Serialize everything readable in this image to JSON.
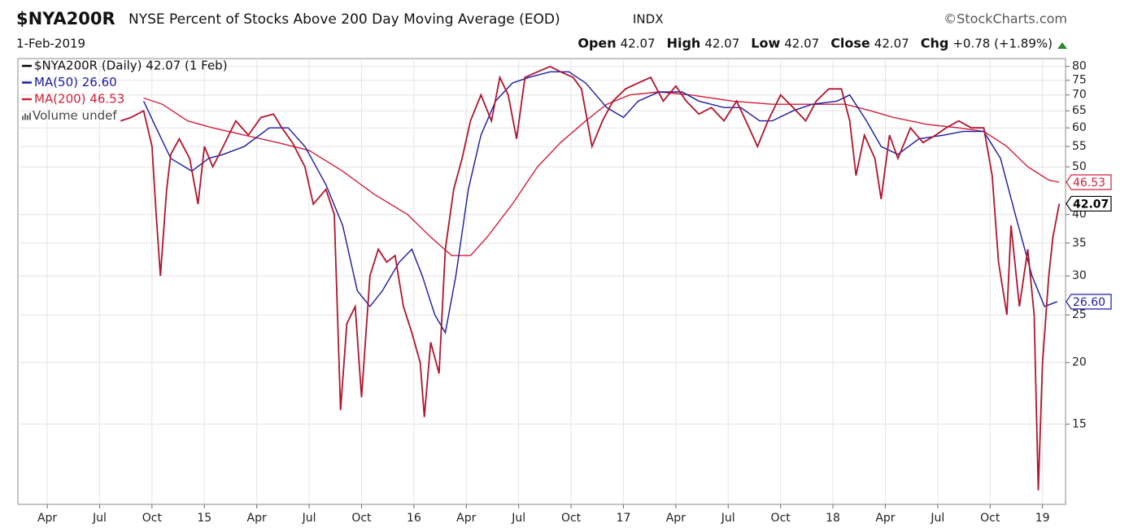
{
  "chart_data": {
    "type": "line",
    "symbol": "$NYA200R",
    "title": "NYSE Percent of Stocks Above 200 Day Moving Average (EOD)",
    "exchange": "INDX",
    "source": "©StockCharts.com",
    "date": "1-Feb-2019",
    "quote": [
      {
        "label": "Open",
        "value": "42.07"
      },
      {
        "label": "High",
        "value": "42.07"
      },
      {
        "label": "Low",
        "value": "42.07"
      },
      {
        "label": "Close",
        "value": "42.07"
      },
      {
        "label": "Chg",
        "value": "+0.78 (+1.89%)"
      }
    ],
    "volume_note": "Volume undef",
    "log_scale": true,
    "grid": true,
    "legend": "top-left",
    "xlim": [
      2014.11,
      2019.11
    ],
    "ylim": [
      10.3,
      83
    ],
    "yticks": [
      15,
      20,
      25,
      30,
      35,
      40,
      50,
      55,
      60,
      65,
      70,
      75,
      80
    ],
    "xticks": [
      {
        "value": 2014.25,
        "label": "Apr"
      },
      {
        "value": 2014.5,
        "label": "Jul"
      },
      {
        "value": 2014.75,
        "label": "Oct"
      },
      {
        "value": 2015,
        "label": "15"
      },
      {
        "value": 2015.25,
        "label": "Apr"
      },
      {
        "value": 2015.5,
        "label": "Jul"
      },
      {
        "value": 2015.75,
        "label": "Oct"
      },
      {
        "value": 2016,
        "label": "16"
      },
      {
        "value": 2016.25,
        "label": "Apr"
      },
      {
        "value": 2016.5,
        "label": "Jul"
      },
      {
        "value": 2016.75,
        "label": "Oct"
      },
      {
        "value": 2017,
        "label": "17"
      },
      {
        "value": 2017.25,
        "label": "Apr"
      },
      {
        "value": 2017.5,
        "label": "Jul"
      },
      {
        "value": 2017.75,
        "label": "Oct"
      },
      {
        "value": 2018,
        "label": "18"
      },
      {
        "value": 2018.25,
        "label": "Apr"
      },
      {
        "value": 2018.5,
        "label": "Jul"
      },
      {
        "value": 2018.75,
        "label": "Oct"
      },
      {
        "value": 2019,
        "label": "19"
      }
    ],
    "series": [
      {
        "name": "$NYA200R (Daily) 42.07 (1 Feb)",
        "color": "#b0142c",
        "legend_color": "#000000",
        "last_label": "42.07",
        "badge_color": "#000000",
        "x": [
          2014.6,
          2014.65,
          2014.71,
          2014.75,
          2014.77,
          2014.79,
          2014.82,
          2014.84,
          2014.88,
          2014.93,
          2014.97,
          2015.0,
          2015.04,
          2015.09,
          2015.15,
          2015.21,
          2015.27,
          2015.33,
          2015.37,
          2015.42,
          2015.48,
          2015.52,
          2015.58,
          2015.62,
          2015.65,
          2015.68,
          2015.72,
          2015.75,
          2015.79,
          2015.83,
          2015.87,
          2015.91,
          2015.95,
          2015.99,
          2016.03,
          2016.05,
          2016.08,
          2016.12,
          2016.15,
          2016.19,
          2016.23,
          2016.27,
          2016.32,
          2016.37,
          2016.41,
          2016.45,
          2016.49,
          2016.53,
          2016.59,
          2016.65,
          2016.7,
          2016.76,
          2016.8,
          2016.85,
          2016.9,
          2016.95,
          2017.01,
          2017.07,
          2017.13,
          2017.19,
          2017.25,
          2017.3,
          2017.36,
          2017.42,
          2017.48,
          2017.54,
          2017.6,
          2017.64,
          2017.69,
          2017.75,
          2017.81,
          2017.87,
          2017.92,
          2017.98,
          2018.04,
          2018.08,
          2018.11,
          2018.15,
          2018.2,
          2018.23,
          2018.27,
          2018.31,
          2018.37,
          2018.43,
          2018.49,
          2018.54,
          2018.6,
          2018.66,
          2018.72,
          2018.76,
          2018.79,
          2018.83,
          2018.85,
          2018.89,
          2018.93,
          2018.96,
          2018.98,
          2019.0,
          2019.03,
          2019.05,
          2019.08
        ],
        "values": [
          62,
          63,
          65,
          55,
          40,
          30,
          45,
          53,
          57,
          52,
          42,
          55,
          50,
          55,
          62,
          58,
          63,
          64,
          60,
          56,
          50,
          42,
          45,
          40,
          16,
          24,
          26,
          17,
          30,
          34,
          32,
          33,
          26,
          23,
          20,
          15.5,
          22,
          19,
          34,
          45,
          52,
          62,
          70,
          62,
          76,
          70,
          57,
          76,
          78,
          80,
          78,
          76,
          72,
          55,
          62,
          68,
          72,
          74,
          76,
          68,
          73,
          68,
          64,
          66,
          62,
          68,
          60,
          55,
          62,
          70,
          66,
          62,
          68,
          72,
          72,
          62,
          48,
          58,
          52,
          43,
          58,
          52,
          60,
          56,
          58,
          60,
          62,
          60,
          60,
          48,
          32,
          25,
          38,
          26,
          34,
          25,
          11,
          20,
          30,
          36,
          42.07
        ]
      },
      {
        "name": "MA(50) 26.60",
        "color": "#1a1aa0",
        "last_label": "26.60",
        "badge_color": "#1a1aa0",
        "x": [
          2014.71,
          2014.77,
          2014.84,
          2014.94,
          2015.02,
          2015.09,
          2015.19,
          2015.31,
          2015.4,
          2015.48,
          2015.58,
          2015.66,
          2015.73,
          2015.79,
          2015.85,
          2015.93,
          2015.99,
          2016.04,
          2016.1,
          2016.15,
          2016.2,
          2016.26,
          2016.32,
          2016.39,
          2016.47,
          2016.55,
          2016.65,
          2016.74,
          2016.82,
          2016.92,
          2017.0,
          2017.07,
          2017.17,
          2017.28,
          2017.36,
          2017.48,
          2017.56,
          2017.65,
          2017.71,
          2017.81,
          2017.9,
          2018.02,
          2018.08,
          2018.16,
          2018.23,
          2018.31,
          2018.41,
          2018.53,
          2018.62,
          2018.72,
          2018.8,
          2018.87,
          2018.95,
          2019.01,
          2019.07
        ],
        "values": [
          68,
          60,
          52,
          49,
          52,
          53,
          55,
          60,
          60,
          55,
          46,
          38,
          28,
          26,
          28,
          32,
          34,
          30,
          25,
          23,
          30,
          45,
          58,
          68,
          74,
          76,
          78,
          78,
          74,
          66,
          63,
          68,
          71,
          71,
          68,
          66,
          66,
          62,
          62,
          65,
          67,
          68,
          70,
          62,
          55,
          53,
          57,
          58,
          59,
          59,
          52,
          40,
          30,
          26,
          26.6
        ]
      },
      {
        "name": "MA(200) 46.53",
        "color": "#d0203a",
        "last_label": "46.53",
        "badge_color": "#d0203a",
        "x": [
          2014.71,
          2014.8,
          2014.92,
          2015.04,
          2015.19,
          2015.35,
          2015.5,
          2015.66,
          2015.81,
          2015.97,
          2016.08,
          2016.18,
          2016.27,
          2016.35,
          2016.47,
          2016.59,
          2016.7,
          2016.82,
          2016.92,
          2017.03,
          2017.17,
          2017.32,
          2017.52,
          2017.71,
          2017.9,
          2018.06,
          2018.18,
          2018.29,
          2018.45,
          2018.6,
          2018.72,
          2018.83,
          2018.93,
          2019.03,
          2019.08
        ],
        "values": [
          69,
          67,
          62,
          60,
          58,
          56,
          54,
          49,
          44,
          40,
          36,
          33,
          33,
          36,
          42,
          50,
          56,
          62,
          67,
          70,
          71,
          70,
          68,
          67,
          67,
          67,
          65,
          63,
          61,
          60,
          59,
          55,
          50,
          47,
          46.53
        ]
      }
    ]
  }
}
